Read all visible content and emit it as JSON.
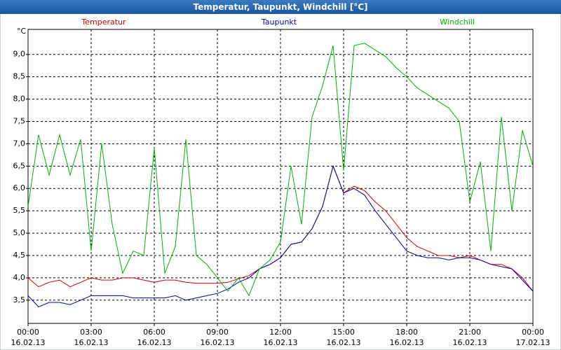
{
  "chart_data": {
    "type": "line",
    "title": "Temperatur, Taupunkt, Windchill [°C]",
    "y_unit": "°C",
    "x": [
      0,
      0.5,
      1,
      1.5,
      2,
      2.5,
      3,
      3.5,
      4,
      4.5,
      5,
      5.5,
      6,
      6.5,
      7,
      7.5,
      8,
      8.5,
      9,
      9.5,
      10,
      10.5,
      11,
      11.5,
      12,
      12.5,
      13,
      13.5,
      14,
      14.5,
      15,
      15.5,
      16,
      16.5,
      17,
      17.5,
      18,
      18.5,
      19,
      19.5,
      20,
      20.5,
      21,
      21.5,
      22,
      22.5,
      23,
      23.5,
      24
    ],
    "series": [
      {
        "name": "Temperatur",
        "color": "#cc0000",
        "values": [
          4.0,
          3.8,
          3.9,
          3.95,
          3.8,
          3.9,
          4.0,
          3.95,
          3.95,
          4.0,
          4.0,
          3.95,
          3.9,
          3.95,
          3.95,
          3.9,
          3.88,
          3.88,
          3.88,
          3.9,
          3.98,
          4.05,
          4.2,
          4.3,
          4.45,
          4.75,
          4.8,
          5.1,
          5.6,
          6.5,
          5.9,
          6.05,
          5.95,
          5.7,
          5.5,
          5.2,
          4.9,
          4.7,
          4.6,
          4.5,
          4.5,
          4.45,
          4.5,
          4.4,
          4.3,
          4.3,
          4.2,
          4.0,
          3.7
        ]
      },
      {
        "name": "Taupunkt",
        "color": "#0000aa",
        "values": [
          3.6,
          3.35,
          3.45,
          3.45,
          3.4,
          3.5,
          3.6,
          3.6,
          3.6,
          3.6,
          3.55,
          3.55,
          3.55,
          3.55,
          3.6,
          3.5,
          3.55,
          3.6,
          3.65,
          3.75,
          3.9,
          4.0,
          4.2,
          4.3,
          4.45,
          4.75,
          4.8,
          5.1,
          5.6,
          6.5,
          5.9,
          6.0,
          5.85,
          5.5,
          5.2,
          4.9,
          4.6,
          4.5,
          4.45,
          4.45,
          4.4,
          4.45,
          4.45,
          4.4,
          4.3,
          4.25,
          4.2,
          3.95,
          3.7
        ]
      },
      {
        "name": "Windchill",
        "color": "#00b000",
        "values": [
          5.6,
          7.2,
          6.3,
          7.2,
          6.3,
          7.1,
          4.6,
          7.0,
          5.2,
          4.1,
          4.6,
          4.5,
          6.9,
          4.1,
          4.7,
          7.1,
          4.5,
          4.3,
          4.0,
          3.7,
          4.0,
          3.6,
          4.2,
          4.4,
          4.8,
          6.5,
          5.2,
          7.6,
          8.3,
          9.2,
          6.4,
          9.2,
          9.25,
          9.1,
          8.95,
          8.7,
          8.5,
          8.25,
          8.1,
          7.95,
          7.8,
          7.5,
          5.7,
          6.6,
          4.6,
          7.6,
          5.5,
          7.3,
          6.5
        ]
      }
    ],
    "xlim": [
      0,
      24
    ],
    "xticks": [
      {
        "value": 0,
        "label": "00:00",
        "date": "16.02.13"
      },
      {
        "value": 3,
        "label": "03:00",
        "date": "16.02.13"
      },
      {
        "value": 6,
        "label": "06:00",
        "date": "16.02.13"
      },
      {
        "value": 9,
        "label": "09:00",
        "date": "16.02.13"
      },
      {
        "value": 12,
        "label": "12:00",
        "date": "16.02.13"
      },
      {
        "value": 15,
        "label": "15:00",
        "date": "16.02.13"
      },
      {
        "value": 18,
        "label": "18:00",
        "date": "16.02.13"
      },
      {
        "value": 21,
        "label": "21:00",
        "date": "16.02.13"
      },
      {
        "value": 24,
        "label": "00:00",
        "date": "17.02.13"
      }
    ],
    "ylim": [
      2.98,
      9.56
    ],
    "yticks": [
      {
        "value": 3.5,
        "label": "3,5"
      },
      {
        "value": 4,
        "label": "4,0"
      },
      {
        "value": 4.5,
        "label": "4,5"
      },
      {
        "value": 5,
        "label": "5,0"
      },
      {
        "value": 5.5,
        "label": "5,5"
      },
      {
        "value": 6,
        "label": "6,0"
      },
      {
        "value": 6.5,
        "label": "6,5"
      },
      {
        "value": 7,
        "label": "7,0"
      },
      {
        "value": 7.5,
        "label": "7,5"
      },
      {
        "value": 8,
        "label": "8,0"
      },
      {
        "value": 8.5,
        "label": "8,5"
      },
      {
        "value": 9,
        "label": "9,0"
      }
    ],
    "grid": true
  }
}
